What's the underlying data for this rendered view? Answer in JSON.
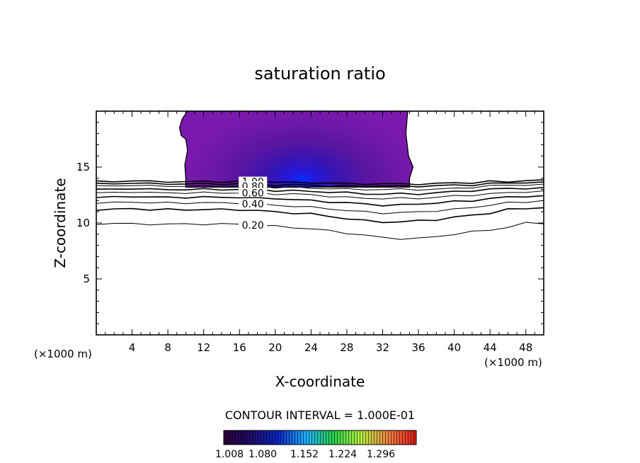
{
  "chart_data": {
    "type": "contour",
    "title": "saturation ratio",
    "xlabel": "X-coordinate",
    "ylabel": "Z-coordinate",
    "x_unit_label": "(×1000 m)",
    "x_unit_label_right": "(×1000 m)",
    "xlim": [
      0,
      50
    ],
    "ylim": [
      0,
      20
    ],
    "x_ticks": [
      4,
      8,
      12,
      16,
      20,
      24,
      28,
      32,
      36,
      40,
      44,
      48
    ],
    "y_ticks": [
      5,
      10,
      15
    ],
    "contour_interval_text": "CONTOUR INTERVAL = 1.000E-01",
    "contour_labels": [
      "1.00",
      "0.80",
      "0.60",
      "0.40",
      "0.20"
    ],
    "contours": [
      {
        "level": "0.20",
        "x": [
          0,
          2,
          4,
          6,
          8,
          10,
          12,
          14,
          16,
          18,
          20,
          22,
          24,
          26,
          28,
          30,
          32,
          34,
          36,
          38,
          40,
          42,
          44,
          46,
          48,
          50
        ],
        "z": [
          9.9,
          10.0,
          9.9,
          9.9,
          9.9,
          9.9,
          9.9,
          9.9,
          9.9,
          9.8,
          9.7,
          9.6,
          9.5,
          9.3,
          9.1,
          8.9,
          8.7,
          8.6,
          8.6,
          8.8,
          9.0,
          9.2,
          9.4,
          9.6,
          10.0,
          10.0
        ]
      },
      {
        "level": "0.30",
        "x": [
          0,
          2,
          4,
          6,
          8,
          10,
          12,
          14,
          16,
          18,
          20,
          22,
          24,
          26,
          28,
          30,
          32,
          34,
          36,
          38,
          40,
          42,
          44,
          46,
          48,
          50
        ],
        "z": [
          11.2,
          11.2,
          11.3,
          11.2,
          11.2,
          11.2,
          11.2,
          11.2,
          11.2,
          11.1,
          11.0,
          10.9,
          10.8,
          10.6,
          10.4,
          10.2,
          10.1,
          10.1,
          10.2,
          10.3,
          10.5,
          10.7,
          10.9,
          11.2,
          11.3,
          11.4
        ]
      },
      {
        "level": "0.40",
        "x": [
          0,
          2,
          4,
          6,
          8,
          10,
          12,
          14,
          16,
          18,
          20,
          22,
          24,
          26,
          28,
          30,
          32,
          34,
          36,
          38,
          40,
          42,
          44,
          46,
          48,
          50
        ],
        "z": [
          11.8,
          11.8,
          11.9,
          11.8,
          11.8,
          11.8,
          11.8,
          11.8,
          11.8,
          11.7,
          11.6,
          11.5,
          11.4,
          11.3,
          11.1,
          11.0,
          10.9,
          10.9,
          11.0,
          11.1,
          11.2,
          11.4,
          11.6,
          11.8,
          11.9,
          12.0
        ]
      },
      {
        "level": "0.50",
        "x": [
          0,
          2,
          4,
          6,
          8,
          10,
          12,
          14,
          16,
          18,
          20,
          22,
          24,
          26,
          28,
          30,
          32,
          34,
          36,
          38,
          40,
          42,
          44,
          46,
          48,
          50
        ],
        "z": [
          12.3,
          12.3,
          12.4,
          12.3,
          12.3,
          12.3,
          12.3,
          12.3,
          12.3,
          12.2,
          12.2,
          12.1,
          12.0,
          11.9,
          11.8,
          11.7,
          11.6,
          11.6,
          11.7,
          11.8,
          11.9,
          12.0,
          12.2,
          12.3,
          12.4,
          12.4
        ]
      },
      {
        "level": "0.60",
        "x": [
          0,
          2,
          4,
          6,
          8,
          10,
          12,
          14,
          16,
          18,
          20,
          22,
          24,
          26,
          28,
          30,
          32,
          34,
          36,
          38,
          40,
          42,
          44,
          46,
          48,
          50
        ],
        "z": [
          12.7,
          12.7,
          12.8,
          12.7,
          12.7,
          12.7,
          12.7,
          12.7,
          12.7,
          12.7,
          12.6,
          12.6,
          12.5,
          12.4,
          12.3,
          12.2,
          12.2,
          12.2,
          12.2,
          12.3,
          12.4,
          12.5,
          12.6,
          12.7,
          12.8,
          12.8
        ]
      },
      {
        "level": "0.70",
        "x": [
          0,
          2,
          4,
          6,
          8,
          10,
          12,
          14,
          16,
          18,
          20,
          22,
          24,
          26,
          28,
          30,
          32,
          34,
          36,
          38,
          40,
          42,
          44,
          46,
          48,
          50
        ],
        "z": [
          13.0,
          13.0,
          13.1,
          13.0,
          13.0,
          13.0,
          13.0,
          13.0,
          13.0,
          13.0,
          12.9,
          12.9,
          12.8,
          12.8,
          12.7,
          12.6,
          12.6,
          12.6,
          12.6,
          12.7,
          12.8,
          12.9,
          13.0,
          13.1,
          13.1,
          13.1
        ]
      },
      {
        "level": "0.80",
        "x": [
          0,
          2,
          4,
          6,
          8,
          10,
          12,
          14,
          16,
          18,
          20,
          22,
          24,
          26,
          28,
          30,
          32,
          34,
          36,
          38,
          40,
          42,
          44,
          46,
          48,
          50
        ],
        "z": [
          13.3,
          13.3,
          13.4,
          13.3,
          13.3,
          13.3,
          13.3,
          13.3,
          13.3,
          13.3,
          13.2,
          13.2,
          13.1,
          13.1,
          13.0,
          13.0,
          13.0,
          13.0,
          13.0,
          13.0,
          13.1,
          13.2,
          13.3,
          13.4,
          13.4,
          13.4
        ]
      },
      {
        "level": "0.90",
        "x": [
          0,
          2,
          4,
          6,
          8,
          10,
          12,
          14,
          16,
          18,
          20,
          22,
          24,
          26,
          28,
          30,
          32,
          34,
          36,
          38,
          40,
          42,
          44,
          46,
          48,
          50
        ],
        "z": [
          13.5,
          13.5,
          13.6,
          13.5,
          13.5,
          13.5,
          13.5,
          13.5,
          13.5,
          13.5,
          13.4,
          13.4,
          13.4,
          13.3,
          13.3,
          13.3,
          13.3,
          13.3,
          13.3,
          13.3,
          13.4,
          13.4,
          13.5,
          13.6,
          13.6,
          13.6
        ]
      },
      {
        "level": "1.00",
        "x": [
          0,
          2,
          4,
          6,
          8,
          10,
          12,
          14,
          16,
          18,
          20,
          22,
          24,
          26,
          28,
          30,
          32,
          34,
          36,
          38,
          40,
          42,
          44,
          46,
          48,
          50
        ],
        "z": [
          13.7,
          13.7,
          13.8,
          13.7,
          13.7,
          13.7,
          13.7,
          13.7,
          13.7,
          13.7,
          13.7,
          13.6,
          13.6,
          13.6,
          13.5,
          13.5,
          13.5,
          13.5,
          13.5,
          13.5,
          13.6,
          13.6,
          13.7,
          13.7,
          13.8,
          13.8
        ]
      }
    ],
    "supersaturated_region": {
      "boundary_x": [
        10.0,
        9.9,
        10.2,
        10.0,
        9.5,
        9.3,
        9.6,
        10.1,
        10.1,
        34.8,
        34.6,
        34.9,
        35.4,
        35.0,
        35.0
      ],
      "boundary_z": [
        14.0,
        15.2,
        16.5,
        17.5,
        17.8,
        18.5,
        19.3,
        19.9,
        20.0,
        20.0,
        18.0,
        16.0,
        15.0,
        14.0,
        13.2
      ],
      "base_z": 13.2,
      "core": {
        "x": 23,
        "z": 13.9
      }
    },
    "colorbar": {
      "tick_labels": [
        "1.008",
        "1.080",
        "1.152",
        "1.224",
        "1.296"
      ],
      "colors": [
        "#2a003a",
        "#1f0b6a",
        "#0a28c8",
        "#1fb0ff",
        "#28d24a",
        "#b8f040",
        "#f08040",
        "#e01818"
      ]
    }
  }
}
